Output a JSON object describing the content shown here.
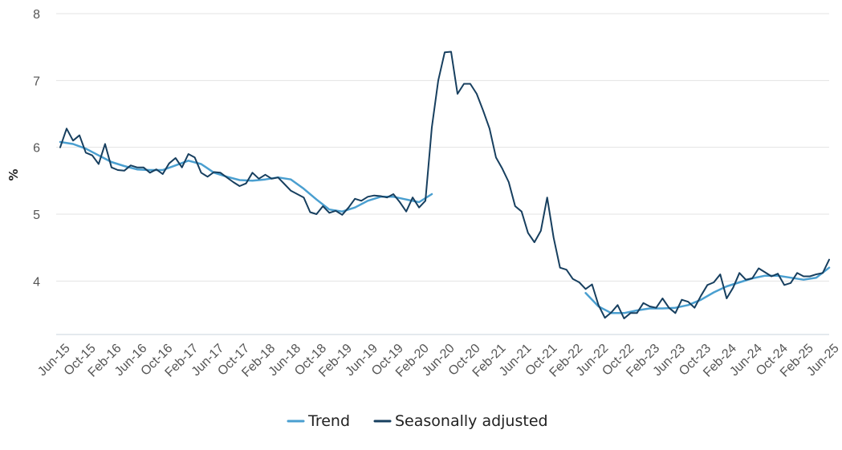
{
  "chart_data": {
    "type": "line",
    "title": "",
    "xlabel": "",
    "ylabel": "%",
    "ylim": [
      3.2,
      8
    ],
    "yticks": [
      "4",
      "5",
      "6",
      "7",
      "8"
    ],
    "ytick_values": [
      4,
      5,
      6,
      7,
      8
    ],
    "x_tick_labels": [
      "Jun-15",
      "Oct-15",
      "Feb-16",
      "Jun-16",
      "Oct-16",
      "Feb-17",
      "Jun-17",
      "Oct-17",
      "Feb-18",
      "Jun-18",
      "Oct-18",
      "Feb-19",
      "Jun-19",
      "Oct-19",
      "Feb-20",
      "Jun-20",
      "Oct-20",
      "Feb-21",
      "Jun-21",
      "Oct-21",
      "Feb-22",
      "Jun-22",
      "Oct-22",
      "Feb-23",
      "Jun-23",
      "Oct-23",
      "Feb-24",
      "Jun-24",
      "Oct-24",
      "Feb-25",
      "Jun-25"
    ],
    "x_tick_months": [
      0,
      4,
      8,
      12,
      16,
      20,
      24,
      28,
      32,
      36,
      40,
      44,
      48,
      52,
      56,
      60,
      64,
      68,
      72,
      76,
      80,
      84,
      88,
      92,
      96,
      100,
      104,
      108,
      112,
      116,
      120
    ],
    "legend": [
      "Trend",
      "Seasonally adjusted"
    ],
    "legend_position": "bottom-center",
    "series": [
      {
        "name": "Trend",
        "color": "#4a9fd0",
        "x_months": [
          0,
          2,
          4,
          6,
          8,
          10,
          12,
          14,
          16,
          18,
          20,
          22,
          24,
          26,
          28,
          30,
          32,
          34,
          36,
          38,
          40,
          42,
          44,
          46,
          48,
          50,
          52,
          54,
          56,
          58
        ],
        "values": [
          6.08,
          6.05,
          5.98,
          5.88,
          5.78,
          5.72,
          5.67,
          5.66,
          5.66,
          5.73,
          5.8,
          5.75,
          5.62,
          5.56,
          5.51,
          5.5,
          5.52,
          5.55,
          5.52,
          5.38,
          5.22,
          5.07,
          5.04,
          5.1,
          5.2,
          5.26,
          5.26,
          5.22,
          5.18,
          5.3
        ]
      },
      {
        "name": "Trend",
        "color": "#4a9fd0",
        "x_months": [
          82,
          84,
          86,
          88,
          90,
          92,
          94,
          96,
          98,
          100,
          102,
          104,
          106,
          108,
          110,
          112,
          114,
          116,
          118,
          120
        ],
        "values": [
          3.82,
          3.62,
          3.52,
          3.52,
          3.56,
          3.59,
          3.59,
          3.6,
          3.64,
          3.72,
          3.83,
          3.92,
          3.98,
          4.04,
          4.08,
          4.08,
          4.05,
          4.02,
          4.05,
          4.2
        ]
      },
      {
        "name": "Seasonally adjusted",
        "color": "#173f5f",
        "x_months": [
          0,
          1,
          2,
          3,
          4,
          5,
          6,
          7,
          8,
          9,
          10,
          11,
          12,
          13,
          14,
          15,
          16,
          17,
          18,
          19,
          20,
          21,
          22,
          23,
          24,
          25,
          26,
          27,
          28,
          29,
          30,
          31,
          32,
          33,
          34,
          35,
          36,
          37,
          38,
          39,
          40,
          41,
          42,
          43,
          44,
          45,
          46,
          47,
          48,
          49,
          50,
          51,
          52,
          53,
          54,
          55,
          56,
          57,
          58,
          59,
          60,
          61,
          62,
          63,
          64,
          65,
          66,
          67,
          68,
          69,
          70,
          71,
          72,
          73,
          74,
          75,
          76,
          77,
          78,
          79,
          80,
          81,
          82,
          83,
          84,
          85,
          86,
          87,
          88,
          89,
          90,
          91,
          92,
          93,
          94,
          95,
          96,
          97,
          98,
          99,
          100,
          101,
          102,
          103,
          104,
          105,
          106,
          107,
          108,
          109,
          110,
          111,
          112,
          113,
          114,
          115,
          116,
          117,
          118,
          119,
          120
        ],
        "values": [
          6.0,
          6.28,
          6.1,
          6.18,
          5.92,
          5.88,
          5.75,
          6.05,
          5.7,
          5.66,
          5.65,
          5.73,
          5.7,
          5.7,
          5.62,
          5.67,
          5.6,
          5.76,
          5.84,
          5.7,
          5.9,
          5.85,
          5.62,
          5.56,
          5.63,
          5.62,
          5.55,
          5.48,
          5.42,
          5.46,
          5.62,
          5.53,
          5.59,
          5.53,
          5.55,
          5.45,
          5.35,
          5.3,
          5.25,
          5.03,
          5.0,
          5.12,
          5.02,
          5.05,
          4.99,
          5.1,
          5.23,
          5.2,
          5.26,
          5.28,
          5.27,
          5.25,
          5.3,
          5.18,
          5.04,
          5.25,
          5.1,
          5.2,
          6.3,
          7.0,
          7.42,
          7.43,
          6.8,
          6.95,
          6.95,
          6.8,
          6.55,
          6.28,
          5.85,
          5.68,
          5.48,
          5.12,
          5.04,
          4.72,
          4.58,
          4.75,
          5.25,
          4.65,
          4.2,
          4.17,
          4.03,
          3.98,
          3.88,
          3.95,
          3.64,
          3.45,
          3.53,
          3.64,
          3.44,
          3.52,
          3.52,
          3.67,
          3.62,
          3.6,
          3.74,
          3.6,
          3.52,
          3.72,
          3.69,
          3.6,
          3.78,
          3.94,
          3.98,
          4.1,
          3.74,
          3.9,
          4.12,
          4.02,
          4.04,
          4.19,
          4.13,
          4.07,
          4.11,
          3.94,
          3.97,
          4.12,
          4.07,
          4.07,
          4.1,
          4.12,
          4.32
        ]
      }
    ]
  }
}
